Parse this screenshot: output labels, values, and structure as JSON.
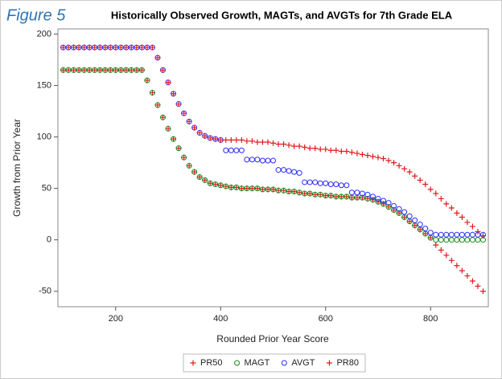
{
  "chart_data": {
    "type": "scatter",
    "figure_label": "Figure 5",
    "title": "Historically Observed Growth, MAGTs, and AVGTs for 7th Grade ELA",
    "x_label": "Rounded Prior Year Score",
    "y_label": "Growth from Prior Year",
    "x": [
      100,
      110,
      120,
      130,
      140,
      150,
      160,
      170,
      180,
      190,
      200,
      210,
      220,
      230,
      240,
      250,
      260,
      270,
      280,
      290,
      300,
      310,
      320,
      330,
      340,
      350,
      360,
      370,
      380,
      390,
      400,
      410,
      420,
      430,
      440,
      450,
      460,
      470,
      480,
      490,
      500,
      510,
      520,
      530,
      540,
      550,
      560,
      570,
      580,
      590,
      600,
      610,
      620,
      630,
      640,
      650,
      660,
      670,
      680,
      690,
      700,
      710,
      720,
      730,
      740,
      750,
      760,
      770,
      780,
      790,
      800,
      810,
      820,
      830,
      840,
      850,
      860,
      870,
      880,
      890,
      900
    ],
    "series": [
      {
        "name": "PR50",
        "color": "#e41a1c",
        "marker": "plus",
        "values": [
          165,
          165,
          165,
          165,
          165,
          165,
          165,
          165,
          165,
          165,
          165,
          165,
          165,
          165,
          165,
          165,
          155,
          143,
          131,
          119,
          108,
          98,
          89,
          80,
          72,
          66,
          61,
          58,
          55,
          54,
          53,
          52,
          51,
          51,
          50,
          50,
          50,
          50,
          49,
          49,
          49,
          48,
          48,
          47,
          47,
          46,
          45,
          45,
          44,
          44,
          43,
          43,
          42,
          42,
          42,
          41,
          41,
          41,
          40,
          39,
          37,
          35,
          32,
          29,
          26,
          22,
          18,
          14,
          10,
          6,
          2,
          -5,
          -10,
          -15,
          -20,
          -25,
          -30,
          -35,
          -40,
          -45,
          -50
        ]
      },
      {
        "name": "MAGT",
        "color": "#1a8a1a",
        "marker": "circle",
        "values": [
          165,
          165,
          165,
          165,
          165,
          165,
          165,
          165,
          165,
          165,
          165,
          165,
          165,
          165,
          165,
          165,
          155,
          143,
          131,
          119,
          108,
          98,
          89,
          80,
          72,
          66,
          61,
          58,
          55,
          54,
          53,
          52,
          51,
          51,
          50,
          50,
          50,
          50,
          49,
          49,
          49,
          48,
          48,
          47,
          47,
          46,
          45,
          45,
          44,
          44,
          43,
          43,
          42,
          42,
          42,
          41,
          41,
          41,
          40,
          39,
          37,
          35,
          32,
          29,
          26,
          22,
          18,
          14,
          10,
          6,
          2,
          0,
          0,
          0,
          0,
          0,
          0,
          0,
          0,
          0,
          0
        ]
      },
      {
        "name": "AVGT",
        "color": "#2b2bff",
        "marker": "circle",
        "values": [
          187,
          187,
          187,
          187,
          187,
          187,
          187,
          187,
          187,
          187,
          187,
          187,
          187,
          187,
          187,
          187,
          187,
          187,
          177,
          165,
          153,
          142,
          132,
          123,
          115,
          109,
          104,
          101,
          99,
          98,
          97,
          87,
          87,
          87,
          87,
          78,
          78,
          78,
          77,
          77,
          77,
          68,
          68,
          67,
          66,
          65,
          56,
          56,
          56,
          55,
          55,
          54,
          54,
          53,
          53,
          46,
          46,
          45,
          44,
          42,
          40,
          38,
          36,
          33,
          30,
          27,
          23,
          19,
          15,
          11,
          7,
          5,
          5,
          5,
          5,
          5,
          5,
          5,
          5,
          5,
          5
        ]
      },
      {
        "name": "PR80",
        "color": "#e41a1c",
        "marker": "plus",
        "values": [
          187,
          187,
          187,
          187,
          187,
          187,
          187,
          187,
          187,
          187,
          187,
          187,
          187,
          187,
          187,
          187,
          187,
          187,
          177,
          165,
          153,
          142,
          132,
          123,
          115,
          109,
          104,
          101,
          99,
          98,
          97,
          97,
          97,
          97,
          97,
          96,
          96,
          95,
          95,
          95,
          94,
          93,
          93,
          92,
          91,
          91,
          90,
          89,
          89,
          88,
          88,
          87,
          87,
          86,
          86,
          85,
          84,
          83,
          82,
          81,
          80,
          79,
          77,
          75,
          72,
          69,
          66,
          62,
          58,
          54,
          49,
          45,
          40,
          35,
          31,
          26,
          22,
          17,
          13,
          8,
          4
        ]
      }
    ],
    "xlim": [
      90,
      910
    ],
    "ylim": [
      -65,
      205
    ],
    "xticks": [
      200,
      400,
      600,
      800
    ],
    "yticks": [
      -50,
      0,
      50,
      100,
      150,
      200
    ],
    "grid": false,
    "legend": "bottom"
  }
}
